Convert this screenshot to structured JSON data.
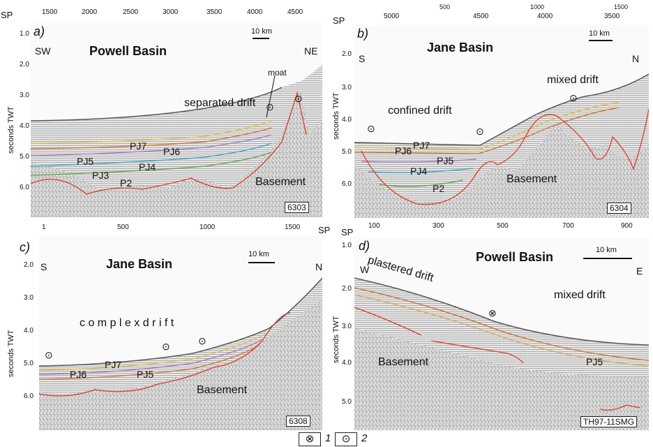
{
  "panel_a": {
    "letter": "a)",
    "title": "Powell Basin",
    "left_dir": "SW",
    "right_dir": "NE",
    "scale": "10 km",
    "line_id": "6303",
    "sp": "SP",
    "x_ticks": [
      "1500",
      "2000",
      "2500",
      "3000",
      "3500",
      "4000",
      "4500"
    ],
    "y_ticks": [
      "1.0",
      "2.0",
      "3.0",
      "4.0",
      "5.0",
      "6.0"
    ],
    "y_label": "seconds TWT",
    "labels": {
      "moat": "moat",
      "separated_drift": "separated drift",
      "pj7": "PJ7",
      "pj6": "PJ6",
      "pj5": "PJ5",
      "pj4": "PJ4",
      "pj3": "PJ3",
      "p2": "P2",
      "basement": "Basement"
    }
  },
  "panel_b": {
    "letter": "b)",
    "title": "Jane  Basin",
    "left_dir": "S",
    "right_dir": "N",
    "scale": "10 km",
    "line_id": "6304",
    "sp": "SP",
    "x_ticks": [
      "5000",
      "4500",
      "4000",
      "3500"
    ],
    "top_partial": [
      "500",
      "1000",
      "1500"
    ],
    "y_ticks": [
      "2.0",
      "3.0",
      "4.0",
      "5.0",
      "6.0"
    ],
    "y_label": "seconds TWT",
    "labels": {
      "mixed_drift": "mixed drift",
      "confined_drift": "confined drift",
      "pj6": "PJ6",
      "pj7": "PJ7",
      "pj5": "PJ5",
      "pj4": "PJ4",
      "p2": "P2",
      "basement": "Basement"
    }
  },
  "panel_c": {
    "letter": "c)",
    "title": "Jane  Basin",
    "left_dir": "S",
    "right_dir": "N",
    "scale": "10 km",
    "line_id": "6308",
    "sp": "SP",
    "x_ticks": [
      "1",
      "500",
      "1000",
      "1500"
    ],
    "y_ticks": [
      "2.0",
      "3.0",
      "4.0",
      "5.0",
      "6.0"
    ],
    "y_label": "seconds TWT",
    "labels": {
      "complex_drift": "c o m p l e x    d r i f t",
      "pj7": "PJ7",
      "pj6": "PJ6",
      "pj5": "PJ5",
      "basement": "Basement"
    }
  },
  "panel_d": {
    "letter": "d)",
    "title": "Powell Basin",
    "left_dir": "W",
    "right_dir": "E",
    "scale": "10 km",
    "line_id": "TH97-11SMG",
    "sp": "SP",
    "x_ticks": [
      "100",
      "300",
      "500",
      "700",
      "900"
    ],
    "y_ticks": [
      "1.0",
      "2.0",
      "3.0",
      "4.0",
      "5.0"
    ],
    "y_label": "seconds TWT",
    "labels": {
      "plastered_drift": "plastered drift",
      "mixed_drift": "mixed drift",
      "basement": "Basement",
      "pj5": "PJ5"
    }
  },
  "legend": {
    "item1_num": "1",
    "item2_num": "2",
    "item1_symbol": "⊗",
    "item2_symbol": "⊙"
  }
}
